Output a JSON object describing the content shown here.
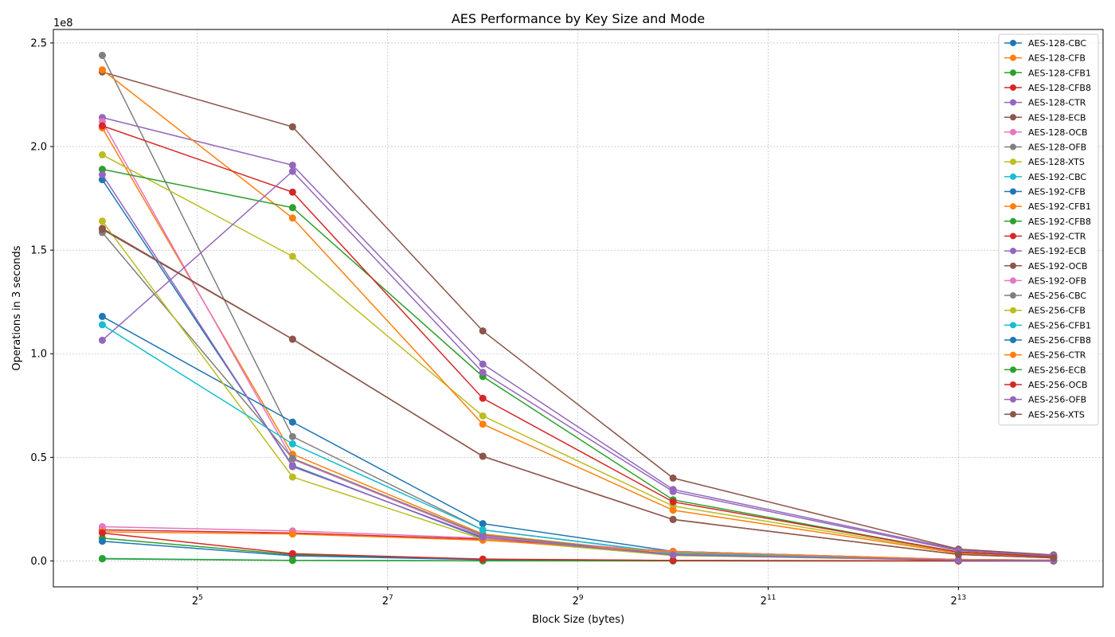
{
  "chart_data": {
    "type": "line",
    "title": "AES Performance by Key Size and Mode",
    "xlabel": "Block Size (bytes)",
    "ylabel": "Operations in 3 seconds",
    "x_scale": "log2",
    "x": [
      16,
      64,
      256,
      1024,
      8192,
      16384
    ],
    "xlim": [
      11.2,
      23500
    ],
    "x_ticks": [
      {
        "value": 32,
        "base": "2",
        "exp": "5"
      },
      {
        "value": 128,
        "base": "2",
        "exp": "7"
      },
      {
        "value": 512,
        "base": "2",
        "exp": "9"
      },
      {
        "value": 2048,
        "base": "2",
        "exp": "11"
      },
      {
        "value": 8192,
        "base": "2",
        "exp": "13"
      }
    ],
    "y_scale_multiplier": "1e8",
    "ylim": [
      -12500000,
      256500000
    ],
    "y_ticks": [
      {
        "value": 0,
        "label": "0.0"
      },
      {
        "value": 50000000,
        "label": "0.5"
      },
      {
        "value": 100000000,
        "label": "1.0"
      },
      {
        "value": 150000000,
        "label": "1.5"
      },
      {
        "value": 200000000,
        "label": "2.0"
      },
      {
        "value": 250000000,
        "label": "2.5"
      }
    ],
    "grid": true,
    "legend_position": "top-right",
    "series": [
      {
        "name": "AES-128-CBC",
        "color": "#1f77b4",
        "values": [
          184000000,
          46000000,
          11000000,
          3000000,
          400000,
          200000
        ]
      },
      {
        "name": "AES-128-CFB",
        "color": "#ff7f0e",
        "values": [
          209000000,
          51500000,
          13000000,
          3200000,
          400000,
          200000
        ]
      },
      {
        "name": "AES-128-CFB1",
        "color": "#2ca02c",
        "values": [
          11000000,
          3000000,
          800000,
          200000,
          50000,
          25000
        ]
      },
      {
        "name": "AES-128-CFB8",
        "color": "#d62728",
        "values": [
          15000000,
          13500000,
          10500000,
          4600000,
          700000,
          350000
        ]
      },
      {
        "name": "AES-128-CTR",
        "color": "#9467bd",
        "values": [
          214000000,
          191000000,
          95000000,
          34500000,
          5500000,
          2800000
        ]
      },
      {
        "name": "AES-128-ECB",
        "color": "#8c564b",
        "values": [
          236000000,
          209500000,
          111000000,
          40000000,
          5700000,
          2900000
        ]
      },
      {
        "name": "AES-128-OCB",
        "color": "#e377c2",
        "values": [
          212000000,
          49000000,
          12000000,
          3000000,
          400000,
          200000
        ]
      },
      {
        "name": "AES-128-OFB",
        "color": "#7f7f7f",
        "values": [
          244000000,
          60000000,
          15000000,
          3800000,
          500000,
          250000
        ]
      },
      {
        "name": "AES-128-XTS",
        "color": "#bcbd22",
        "values": [
          196000000,
          147000000,
          70000000,
          26500000,
          4000000,
          2000000
        ]
      },
      {
        "name": "AES-192-CBC",
        "color": "#17becf",
        "values": [
          1200000,
          300000,
          80000,
          20000,
          3000,
          1500
        ]
      },
      {
        "name": "AES-192-CFB",
        "color": "#1f77b4",
        "values": [
          118000000,
          67000000,
          18000000,
          4600000,
          600000,
          300000
        ]
      },
      {
        "name": "AES-192-CFB1",
        "color": "#ff7f0e",
        "values": [
          237000000,
          165500000,
          66000000,
          24500000,
          3700000,
          1800000
        ]
      },
      {
        "name": "AES-192-CFB8",
        "color": "#2ca02c",
        "values": [
          189000000,
          170500000,
          89000000,
          29500000,
          4200000,
          2100000
        ]
      },
      {
        "name": "AES-192-CTR",
        "color": "#d62728",
        "values": [
          210000000,
          178000000,
          78500000,
          28500000,
          4300000,
          2100000
        ]
      },
      {
        "name": "AES-192-ECB",
        "color": "#9467bd",
        "values": [
          106500000,
          188000000,
          91000000,
          33500000,
          5000000,
          2500000
        ]
      },
      {
        "name": "AES-192-OCB",
        "color": "#8c564b",
        "values": [
          160500000,
          107000000,
          50500000,
          20000000,
          3100000,
          1500000
        ]
      },
      {
        "name": "AES-192-OFB",
        "color": "#e377c2",
        "values": [
          16500000,
          14500000,
          11000000,
          4600000,
          700000,
          350000
        ]
      },
      {
        "name": "AES-256-CBC",
        "color": "#7f7f7f",
        "values": [
          158500000,
          49500000,
          12500000,
          3100000,
          400000,
          200000
        ]
      },
      {
        "name": "AES-256-CFB",
        "color": "#bcbd22",
        "values": [
          164000000,
          40500000,
          10500000,
          2600000,
          350000,
          170000
        ]
      },
      {
        "name": "AES-256-CFB1",
        "color": "#17becf",
        "values": [
          114000000,
          56500000,
          15000000,
          3800000,
          500000,
          250000
        ]
      },
      {
        "name": "AES-256-CFB8",
        "color": "#1f77b4",
        "values": [
          9500000,
          2500000,
          600000,
          150000,
          20000,
          10000
        ]
      },
      {
        "name": "AES-256-CTR",
        "color": "#ff7f0e",
        "values": [
          14000000,
          13000000,
          10000000,
          4400000,
          650000,
          320000
        ]
      },
      {
        "name": "AES-256-ECB",
        "color": "#2ca02c",
        "values": [
          1000000,
          250000,
          60000,
          15000,
          2000,
          1000
        ]
      },
      {
        "name": "AES-256-OCB",
        "color": "#d62728",
        "values": [
          13500000,
          3500000,
          900000,
          230000,
          30000,
          15000
        ]
      },
      {
        "name": "AES-256-OFB",
        "color": "#9467bd",
        "values": [
          186500000,
          45500000,
          11500000,
          2900000,
          380000,
          190000
        ]
      },
      {
        "name": "AES-256-XTS",
        "color": "#8c564b",
        "values": [
          160000000,
          107000000,
          50500000,
          20000000,
          3100000,
          1500000
        ]
      }
    ]
  }
}
